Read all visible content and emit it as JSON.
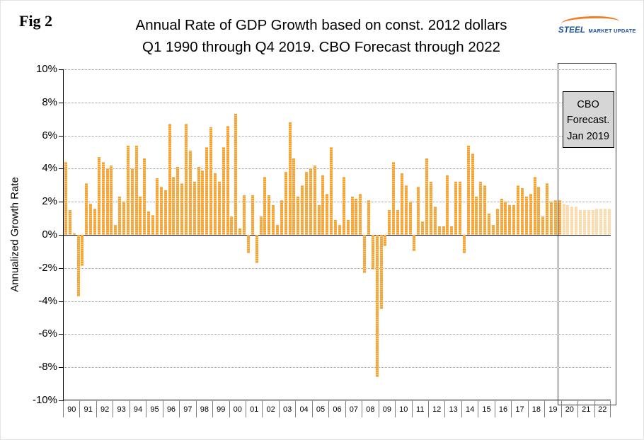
{
  "figure_label": "Fig 2",
  "title_line1": "Annual Rate of GDP Growth based on const. 2012 dollars",
  "title_line2": "Q1 1990 through Q4 2019. CBO Forecast through 2022",
  "logo": {
    "steel": "STEEL",
    "rest": "MARKET UPDATE"
  },
  "forecast_box_label": [
    "CBO",
    "Forecast.",
    "Jan 2019"
  ],
  "chart_data": {
    "type": "bar",
    "title": "Annual Rate of GDP Growth based on const. 2012 dollars, Q1 1990 through Q4 2019. CBO Forecast through 2022",
    "xlabel": "",
    "ylabel": "Annualized Growth Rate",
    "ylim": [
      -10,
      10
    ],
    "ytick_step": 2,
    "ytick_suffix": "%",
    "grid": "dotted-horizontal",
    "legend_position": "none",
    "bar_color": "#F9A02B",
    "forecast_bar_color": "#FBD9A6",
    "quarters_per_year": 4,
    "forecast_start_index": 120,
    "year_labels": [
      "90",
      "91",
      "92",
      "93",
      "94",
      "95",
      "96",
      "97",
      "98",
      "99",
      "00",
      "01",
      "02",
      "03",
      "04",
      "05",
      "06",
      "07",
      "08",
      "09",
      "10",
      "11",
      "12",
      "13",
      "14",
      "15",
      "16",
      "17",
      "18",
      "19",
      "20",
      "21",
      "22"
    ],
    "values": [
      4.4,
      1.5,
      0.1,
      -3.7,
      -1.9,
      3.1,
      1.9,
      1.6,
      4.7,
      4.4,
      4.0,
      4.2,
      0.6,
      2.3,
      2.0,
      5.4,
      4.0,
      5.4,
      2.3,
      4.6,
      1.4,
      1.2,
      3.4,
      2.9,
      2.7,
      6.7,
      3.5,
      4.1,
      3.1,
      6.7,
      5.1,
      3.2,
      4.1,
      3.9,
      5.3,
      6.5,
      3.7,
      3.2,
      5.3,
      6.6,
      1.1,
      7.3,
      0.4,
      2.4,
      -1.1,
      2.4,
      -1.7,
      1.1,
      3.5,
      2.4,
      1.8,
      0.6,
      2.1,
      3.8,
      6.8,
      4.6,
      2.3,
      3.0,
      3.8,
      4.0,
      4.2,
      1.8,
      3.6,
      2.5,
      5.3,
      0.9,
      0.6,
      3.5,
      0.9,
      2.3,
      2.2,
      2.5,
      -2.3,
      2.1,
      -2.1,
      -8.6,
      -4.5,
      -0.7,
      1.5,
      4.4,
      1.5,
      3.7,
      3.0,
      2.0,
      -1.0,
      2.9,
      0.8,
      4.6,
      3.2,
      1.7,
      0.5,
      0.5,
      3.6,
      0.5,
      3.2,
      3.2,
      -1.1,
      5.4,
      4.9,
      2.3,
      3.2,
      3.0,
      1.3,
      0.6,
      1.6,
      2.2,
      2.0,
      1.8,
      1.8,
      3.0,
      2.8,
      2.3,
      2.5,
      3.5,
      2.9,
      1.1,
      3.1,
      2.0,
      2.1,
      2.1,
      1.9,
      1.8,
      1.7,
      1.7,
      1.5,
      1.5,
      1.5,
      1.5,
      1.6,
      1.6,
      1.6,
      1.6
    ]
  }
}
